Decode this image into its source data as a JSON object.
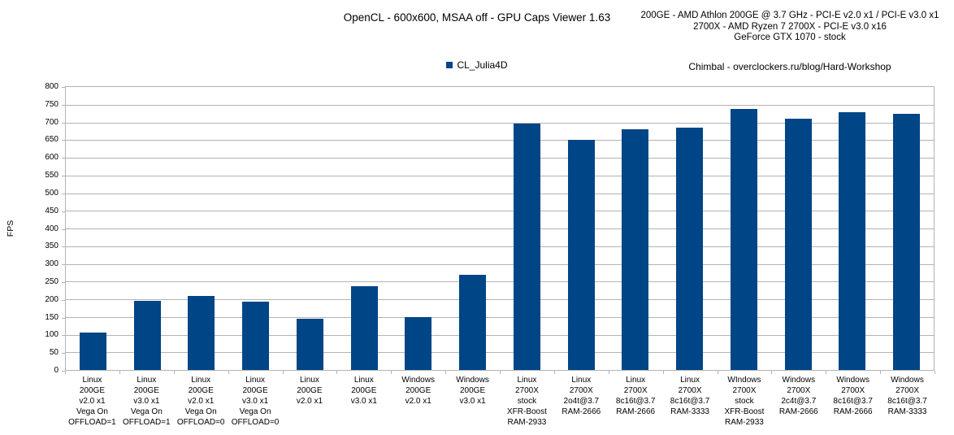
{
  "header": {
    "title": "OpenCL - 600x600, MSAA off - GPU Caps Viewer 1.63",
    "system_info": [
      "200GE - AMD Athlon 200GE @ 3.7 GHz - PCI-E v2.0 x1 / PCI-E v3.0 x1",
      "2700X - AMD Ryzen 7 2700X - PCI-E v3.0 x16",
      "GeForce GTX 1070 - stock"
    ],
    "credit": "Chimbal - overclockers.ru/blog/Hard-Workshop"
  },
  "legend": {
    "label": "CL_Julia4D",
    "marker_color": "#004586"
  },
  "chart_data": {
    "type": "bar",
    "title": "OpenCL - 600x600, MSAA off - GPU Caps Viewer 1.63",
    "series_name": "CL_Julia4D",
    "xlabel": "",
    "ylabel": "FPS",
    "ylim": [
      0,
      800
    ],
    "ytick_step": 50,
    "grid": true,
    "legend_position": "top-center",
    "bar_color": "#004586",
    "gridline_color": "#b3b3b3",
    "axis_color": "#b3b3b3",
    "categories": [
      [
        "Linux",
        "200GE",
        "v2.0 x1",
        "Vega On",
        "OFFLOAD=1"
      ],
      [
        "Linux",
        "200GE",
        "v3.0 x1",
        "Vega On",
        "OFFLOAD=1"
      ],
      [
        "Linux",
        "200GE",
        "v2.0 x1",
        "Vega On",
        "OFFLOAD=0"
      ],
      [
        "Linux",
        "200GE",
        "v3.0 x1",
        "Vega On",
        "OFFLOAD=0"
      ],
      [
        "Linux",
        "200GE",
        "v2.0 x1"
      ],
      [
        "Linux",
        "200GE",
        "v3.0 x1"
      ],
      [
        "Windows",
        "200GE",
        "v2.0 x1"
      ],
      [
        "Windows",
        "200GE",
        "v3.0 x1"
      ],
      [
        "Linux",
        "2700X",
        "stock",
        "XFR-Boost",
        "RAM-2933"
      ],
      [
        "Linux",
        "2700X",
        "2o4t@3.7",
        "RAM-2666"
      ],
      [
        "Linux",
        "2700X",
        "8c16t@3.7",
        "RAM-2666"
      ],
      [
        "Linux",
        "2700X",
        "8c16t@3.7",
        "RAM-3333"
      ],
      [
        "WIndows",
        "2700X",
        "stock",
        "XFR-Boost",
        "RAM-2933"
      ],
      [
        "Windows",
        "2700X",
        "2c4t@3.7",
        "RAM-2666"
      ],
      [
        "Windows",
        "2700X",
        "8c16t@3.7",
        "RAM-2666"
      ],
      [
        "Windows",
        "2700X",
        "8c16t@3.7",
        "RAM-3333"
      ]
    ],
    "values": [
      105,
      195,
      209,
      192,
      144,
      237,
      150,
      268,
      697,
      651,
      681,
      684,
      739,
      710,
      728,
      724
    ]
  }
}
